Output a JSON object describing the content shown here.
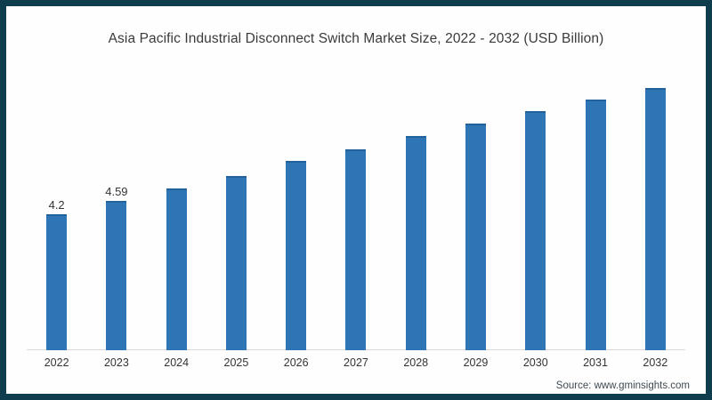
{
  "chart": {
    "title": "Asia Pacific Industrial Disconnect Switch Market Size, 2022 - 2032 (USD Billion)",
    "source": "Source: www.gminsights.com"
  },
  "chart_data": {
    "type": "bar",
    "title": "Asia Pacific Industrial Disconnect Switch Market Size, 2022 - 2032 (USD Billion)",
    "categories": [
      "2022",
      "2023",
      "2024",
      "2025",
      "2026",
      "2027",
      "2028",
      "2029",
      "2030",
      "2031",
      "2032"
    ],
    "values": [
      4.2,
      4.59,
      5.0,
      5.37,
      5.83,
      6.2,
      6.6,
      6.98,
      7.36,
      7.74,
      8.08
    ],
    "visible_value_labels": [
      "4.2",
      "4.59",
      "",
      "",
      "",
      "",
      "",
      "",
      "",
      "",
      ""
    ],
    "xlabel": "",
    "ylabel": "",
    "ylim": [
      0,
      8.8
    ],
    "grid": false,
    "legend": false,
    "y_axis_shown": false,
    "bar_color": "#2e75b6",
    "axis_line_color": "#d9d9d9",
    "frame_color": "#0e3d4d"
  }
}
